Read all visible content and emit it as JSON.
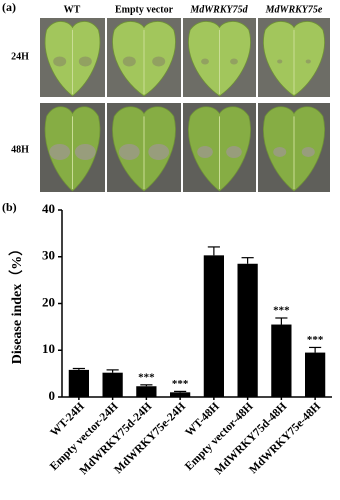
{
  "panel_a": {
    "label": "(a)",
    "columns": [
      "WT",
      "Empty vector",
      "MdWRKY75d",
      "MdWRKY75e"
    ],
    "rows": [
      "24H",
      "48H"
    ]
  },
  "chart_data": {
    "type": "bar",
    "panel_label": "(b)",
    "ylabel": "Disease index（%）",
    "categories": [
      "WT-24H",
      "Empty vector-24H",
      "MdWRKY75d-24H",
      "MdWRKY75e-24H",
      "WT-48H",
      "Empty vector-48H",
      "MdWRKY75d-48H",
      "MdWRKY75e-48H"
    ],
    "values": [
      5.8,
      5.2,
      2.3,
      1.0,
      30.3,
      28.5,
      15.5,
      9.5
    ],
    "errors": [
      0.3,
      0.6,
      0.3,
      0.2,
      1.8,
      1.3,
      1.4,
      1.1
    ],
    "annotations": [
      null,
      null,
      "***",
      "***",
      null,
      null,
      "***",
      "***"
    ],
    "color": "#000000",
    "ylim": [
      0,
      40
    ],
    "yticks": [
      0,
      10,
      20,
      30,
      40
    ]
  }
}
